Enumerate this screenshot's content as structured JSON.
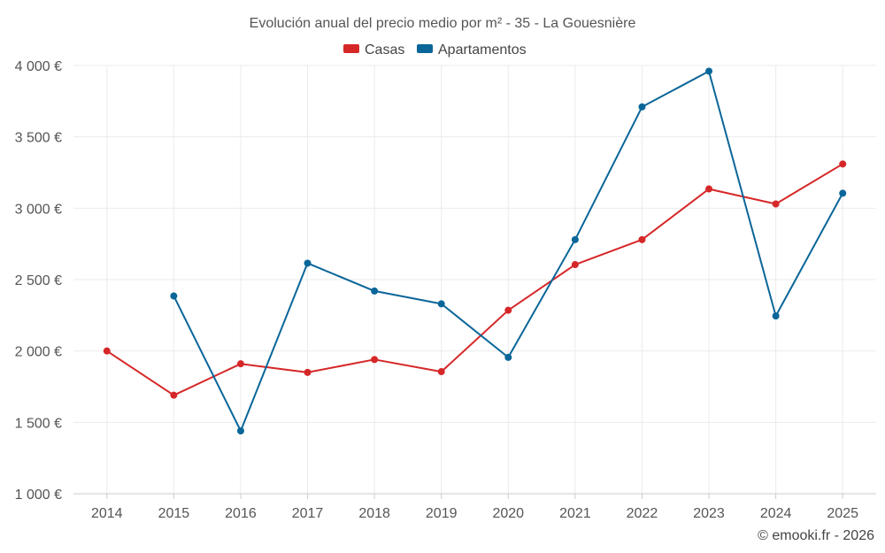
{
  "chart_data": {
    "type": "line",
    "title": "Evolución anual del precio medio por m² - 35 - La Gouesnière",
    "categories": [
      "2014",
      "2015",
      "2016",
      "2017",
      "2018",
      "2019",
      "2020",
      "2021",
      "2022",
      "2023",
      "2024",
      "2025"
    ],
    "ylim": [
      1000,
      4000
    ],
    "yticks": [
      1000,
      1500,
      2000,
      2500,
      3000,
      3500,
      4000
    ],
    "ytick_labels": [
      "1 000 €",
      "1 500 €",
      "2 000 €",
      "2 500 €",
      "3 000 €",
      "3 500 €",
      "4 000 €"
    ],
    "grid": true,
    "legend_position": "top-center",
    "series": [
      {
        "name": "Casas",
        "color": "#d62728",
        "values": [
          2000,
          1690,
          1910,
          1850,
          1940,
          1855,
          2285,
          2605,
          2780,
          3135,
          3030,
          3310
        ]
      },
      {
        "name": "Apartamentos",
        "color": "#0a6699",
        "values": [
          null,
          2385,
          1440,
          2615,
          2420,
          2330,
          1955,
          2780,
          3710,
          3960,
          2245,
          3105
        ]
      }
    ]
  },
  "credit": "© emooki.fr - 2026"
}
